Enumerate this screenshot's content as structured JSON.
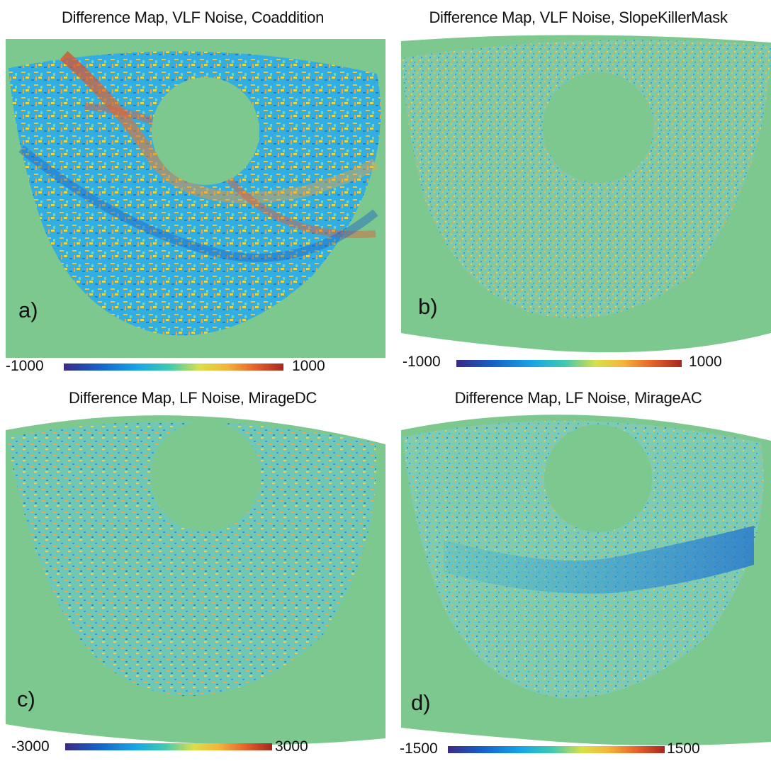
{
  "panels": [
    {
      "id": "a",
      "title": "Difference Map, VLF Noise, Coaddition",
      "letter": "a)",
      "colorbar_min": "-1000",
      "colorbar_max": "1000"
    },
    {
      "id": "b",
      "title": "Difference Map, VLF Noise, SlopeKillerMask",
      "letter": "b)",
      "colorbar_min": "-1000",
      "colorbar_max": "1000"
    },
    {
      "id": "c",
      "title": "Difference Map, LF Noise, MirageDC",
      "letter": "c)",
      "colorbar_min": "-3000",
      "colorbar_max": "3000"
    },
    {
      "id": "d",
      "title": "Difference Map, LF Noise, MirageAC",
      "letter": "d)",
      "colorbar_min": "-1500",
      "colorbar_max": "1500"
    }
  ],
  "colors": {
    "background_green": "#7cc88f",
    "noise_blue": "#1f8fd6",
    "noise_cyan": "#34b6dc",
    "noise_yellow": "#e6d94a",
    "noise_orange": "#e4a03a",
    "noise_red": "#cf5a30"
  }
}
